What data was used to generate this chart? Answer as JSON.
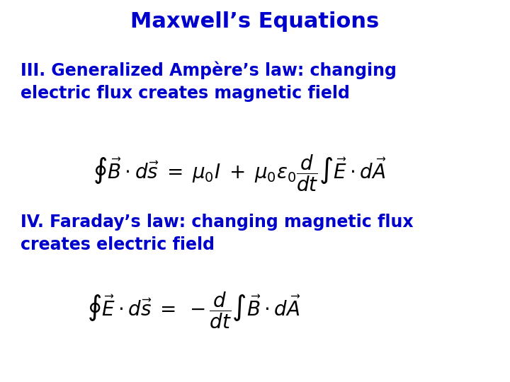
{
  "title": "Maxwell’s Equations",
  "title_color": "#0000CC",
  "title_fontsize": 22,
  "bg_color": "#FFFFFF",
  "text_color": "#0000CC",
  "eq_color": "#000000",
  "label_III": "III. Generalized Ampère’s law: changing\nelectric flux creates magnetic field",
  "label_IV": "IV. Faraday’s law: changing magnetic flux\ncreates electric field",
  "label_fontsize": 17,
  "eq_fontsize": 20,
  "figsize": [
    7.2,
    5.4
  ],
  "dpi": 100
}
